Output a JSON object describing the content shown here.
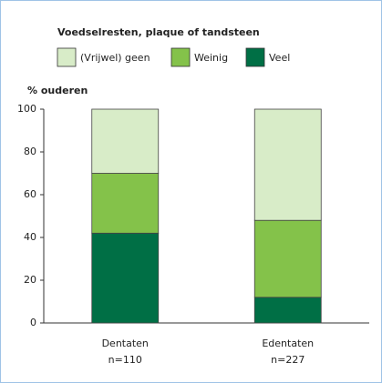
{
  "chart_data": {
    "type": "stacked-bar",
    "legend_title": "Voedselresten, plaque of tandsteen",
    "ylabel": "% ouderen",
    "categories": [
      "Dentaten",
      "Edentaten"
    ],
    "category_sublabels": [
      "n=110",
      "n=227"
    ],
    "series": [
      {
        "name": "(Vrijwel) geen",
        "color": "#d8ecc8",
        "values": [
          30,
          52
        ]
      },
      {
        "name": "Weinig",
        "color": "#84c24a",
        "values": [
          28,
          36
        ]
      },
      {
        "name": "Veel",
        "color": "#006f45",
        "values": [
          42,
          12
        ]
      }
    ],
    "ylim": [
      0,
      100
    ],
    "yticks": [
      0,
      20,
      40,
      60,
      80,
      100
    ]
  }
}
